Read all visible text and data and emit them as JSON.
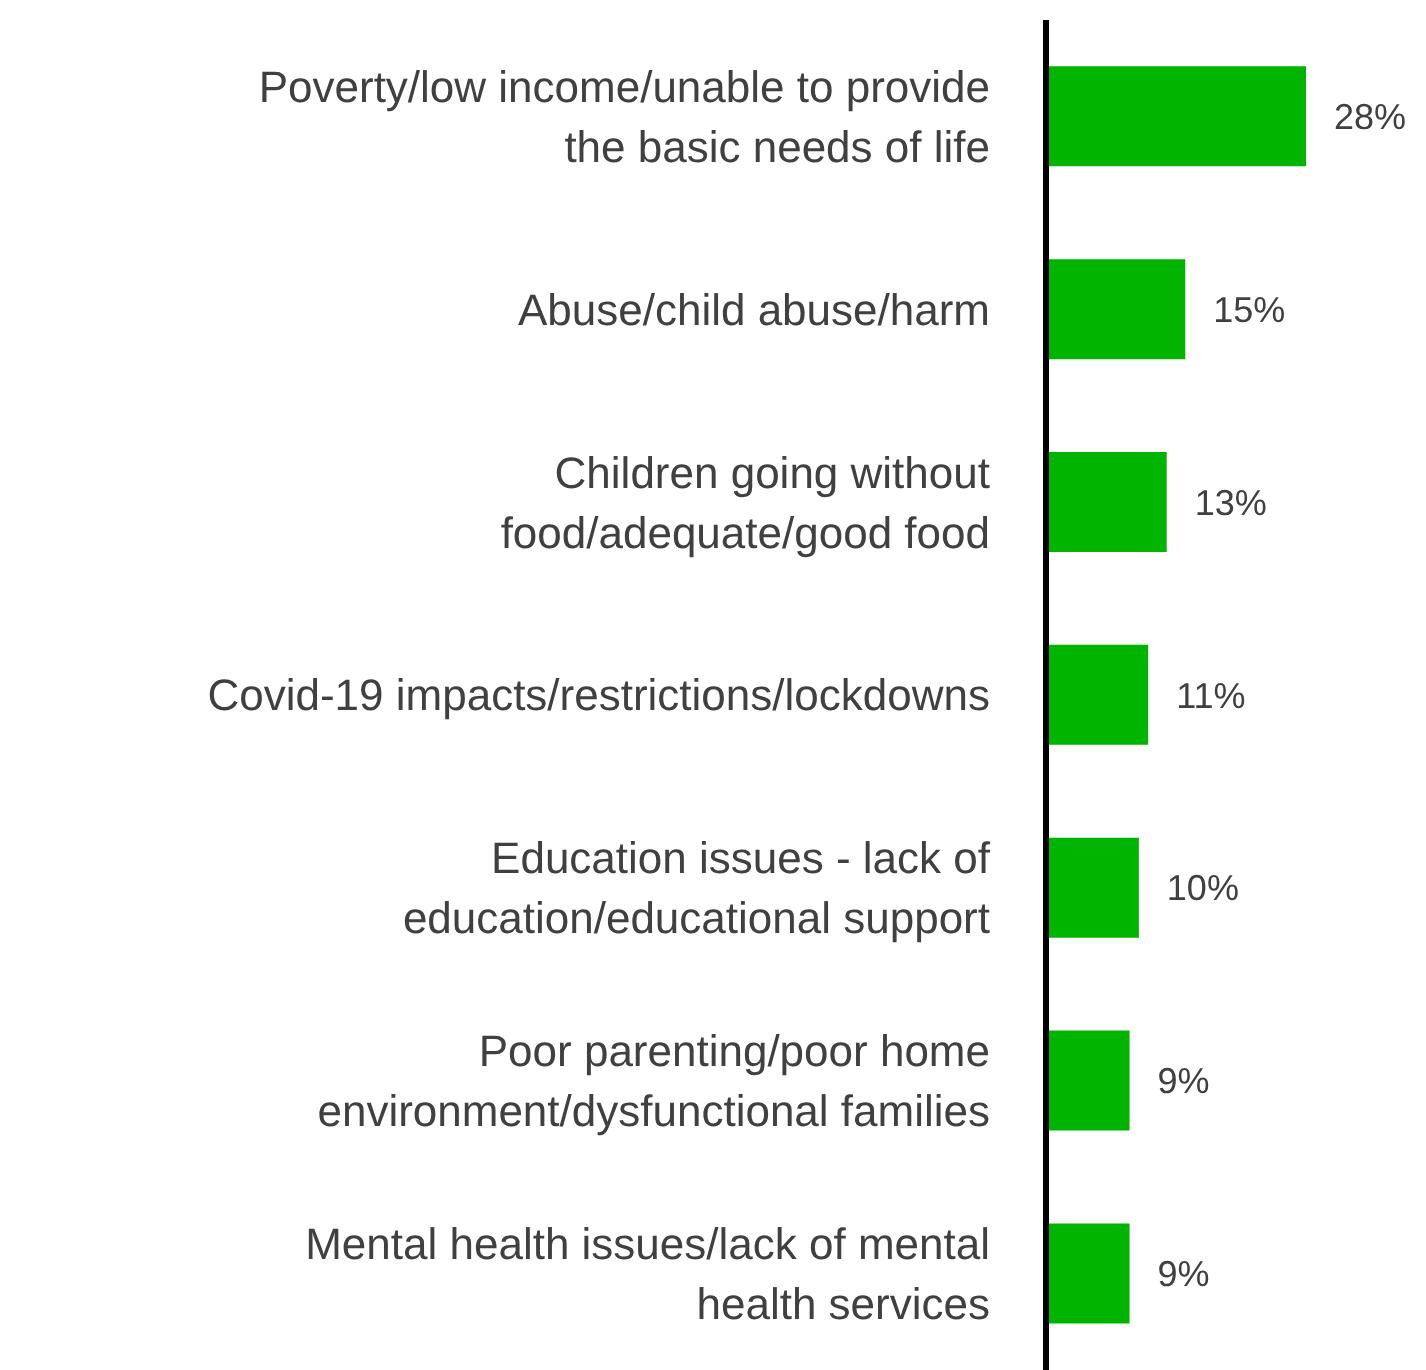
{
  "chart_data": {
    "type": "bar",
    "orientation": "horizontal",
    "categories": [
      "Poverty/low income/unable to provide\nthe basic needs of life",
      "Abuse/child abuse/harm",
      "Children going without\nfood/adequate/good food",
      "Covid-19 impacts/restrictions/lockdowns",
      "Education issues - lack of\neducation/educational support",
      "Poor parenting/poor home\nenvironment/dysfunctional families",
      "Mental health issues/lack of mental\nhealth services"
    ],
    "values": [
      28,
      15,
      13,
      11,
      10,
      9,
      9
    ],
    "value_labels": [
      "28%",
      "15%",
      "13%",
      "11%",
      "10%",
      "9%",
      "9%"
    ],
    "color": "#00b400"
  }
}
